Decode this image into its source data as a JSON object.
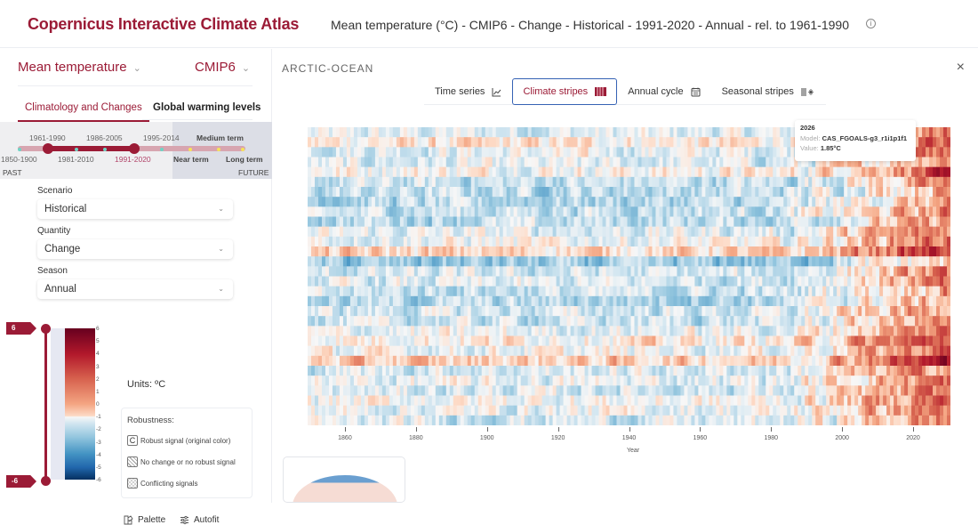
{
  "header": {
    "app_title": "Copernicus Interactive Climate Atlas",
    "subtitle": "Mean temperature (°C) - CMIP6 - Change - Historical - 1991-2020 - Annual - rel. to 1961-1990",
    "info_icon": "info-circle-icon",
    "info_glyph": "i"
  },
  "sidebar": {
    "variable": "Mean temperature",
    "dataset": "CMIP6",
    "chevron": "⌄",
    "tabs": [
      {
        "label": "Climatology and Changes",
        "active": true
      },
      {
        "label": "Global warming levels",
        "active": false
      }
    ],
    "timeline": {
      "top_labels": [
        "1961-1990",
        "1986-2005",
        "1995-2014",
        "Medium term"
      ],
      "bottom_labels": [
        "1850-1900",
        "1981-2010",
        "1991-2020",
        "Near term",
        "Long term"
      ],
      "selected_period": "1991-2020",
      "reference_period": "1961-1990",
      "past_label": "PAST",
      "future_label": "FUTURE"
    },
    "fields": [
      {
        "label": "Scenario",
        "value": "Historical"
      },
      {
        "label": "Quantity",
        "value": "Change"
      },
      {
        "label": "Season",
        "value": "Annual"
      }
    ],
    "legend": {
      "max_tag": "6",
      "min_tag": "-6",
      "ticks": [
        "6",
        "5",
        "4",
        "3",
        "2",
        "1",
        "0",
        "-1",
        "-2",
        "-3",
        "-4",
        "-5",
        "-6"
      ],
      "units": "Units: ºC",
      "robustness_title": "Robustness:",
      "robustness_items": [
        {
          "icon": "C",
          "label": "Robust signal (original color)"
        },
        {
          "icon": "",
          "label": "No change or no robust signal"
        },
        {
          "icon": "",
          "label": "Conflicting signals"
        }
      ],
      "palette_label": "Palette",
      "autofit_label": "Autofit"
    }
  },
  "main": {
    "region": "ARCTIC-OCEAN",
    "close_glyph": "×",
    "view_tabs": [
      {
        "label": "Time series",
        "icon": "⦣",
        "active": false
      },
      {
        "label": "Climate stripes",
        "icon": "▥",
        "active": true
      },
      {
        "label": "Annual cycle",
        "icon": "▦",
        "active": false
      },
      {
        "label": "Seasonal stripes",
        "icon": "⦀❄",
        "active": false
      }
    ],
    "tooltip": {
      "year": "2026",
      "model_label": "Model:",
      "model_value": "CAS_FGOALS-g3_r1i1p1f1",
      "value_label": "Value:",
      "value_value": "1.85°C"
    }
  },
  "chart_data": {
    "type": "heatmap",
    "title": "Climate stripes",
    "xlabel": "Year",
    "ylabel": "",
    "x_ticks": [
      "1860",
      "1880",
      "1900",
      "1920",
      "1940",
      "1960",
      "1980",
      "2000",
      "2020"
    ],
    "x_range": [
      1850,
      2030
    ],
    "color_range": [
      -6,
      6
    ],
    "units": "°C",
    "rows": 30,
    "row_description": "One stripe row per CMIP6 model member; cell = annual mean temperature change relative to 1961-1990",
    "row_bias": [
      -0.5,
      0.4,
      -0.3,
      -0.6,
      0.2,
      -0.9,
      -1.0,
      -1.2,
      -0.8,
      -1.0,
      -0.4,
      -0.1,
      0.8,
      -1.8,
      -0.8,
      -0.6,
      -0.9,
      -1.2,
      -0.7,
      -0.8,
      -0.3,
      0.4,
      -0.1,
      1.0,
      -0.5,
      -0.3,
      -0.6,
      0.0,
      -0.2,
      -0.6
    ],
    "trend_start_year": 1985,
    "end_warming": 3.2,
    "highlight": {
      "year": 2026,
      "model": "CAS_FGOALS-g3_r1i1p1f1",
      "value": 1.85
    }
  }
}
